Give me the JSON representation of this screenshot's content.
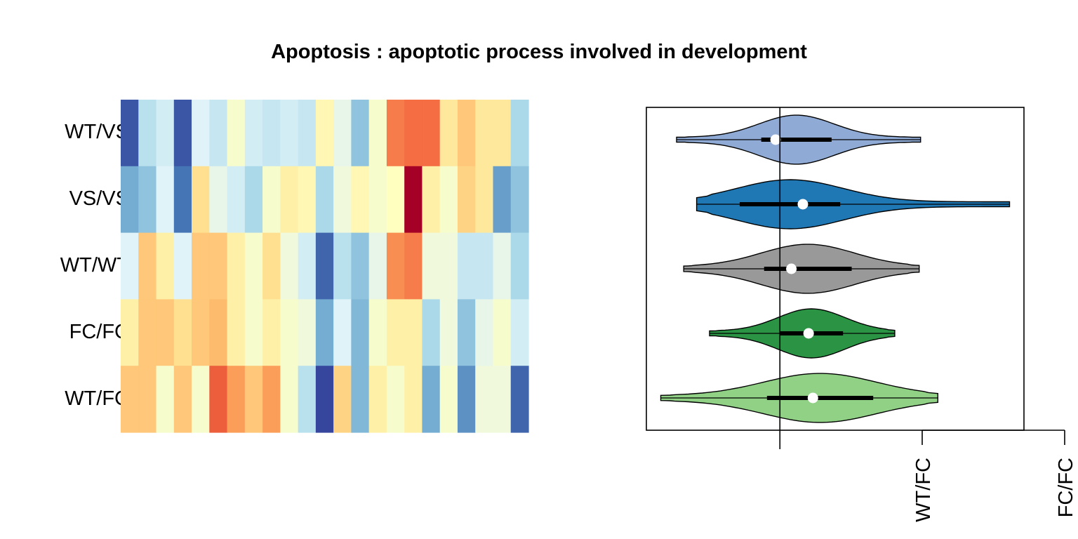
{
  "chart_data": [
    {
      "type": "heatmap",
      "title": "Apoptosis : apoptotic process involved in development",
      "rows": [
        "WT/VS",
        "VS/VS",
        "WT/WT",
        "FC/FC",
        "WT/FC"
      ],
      "n_columns": 23,
      "color_scale": [
        "#313695",
        "#4575b4",
        "#74add1",
        "#abd9e9",
        "#e0f3f8",
        "#ffffbf",
        "#fee090",
        "#fdae61",
        "#f46d43",
        "#d73027",
        "#a50026"
      ],
      "values": [
        [
          -0.9,
          -0.35,
          -0.25,
          -0.9,
          -0.2,
          -0.3,
          -0.05,
          -0.25,
          -0.3,
          -0.25,
          -0.3,
          0.05,
          -0.15,
          -0.5,
          -0.05,
          0.55,
          0.6,
          0.6,
          0.15,
          0.3,
          0.15,
          0.15,
          -0.4
        ],
        [
          -0.6,
          -0.5,
          -0.2,
          -0.8,
          0.2,
          -0.15,
          -0.25,
          -0.4,
          -0.05,
          0.1,
          0.05,
          -0.4,
          -0.1,
          0.05,
          -0.05,
          0.0,
          1.0,
          0.1,
          -0.05,
          0.25,
          0.15,
          -0.65,
          -0.5
        ],
        [
          -0.2,
          0.3,
          0.1,
          -0.2,
          0.3,
          0.3,
          0.1,
          -0.05,
          0.2,
          -0.1,
          -0.25,
          -0.85,
          -0.35,
          -0.5,
          -0.15,
          0.5,
          0.55,
          -0.1,
          -0.1,
          -0.3,
          -0.3,
          -0.15,
          -0.4
        ],
        [
          0.1,
          0.3,
          0.3,
          0.2,
          0.3,
          0.35,
          0.1,
          -0.05,
          0.1,
          -0.05,
          -0.1,
          -0.6,
          -0.2,
          -0.55,
          -0.05,
          0.1,
          0.1,
          -0.4,
          -0.1,
          -0.5,
          -0.15,
          -0.05,
          -0.25
        ],
        [
          0.3,
          0.3,
          -0.05,
          0.3,
          -0.05,
          0.65,
          0.45,
          0.3,
          0.45,
          -0.05,
          -0.35,
          -0.95,
          0.25,
          -0.55,
          0.1,
          -0.05,
          0.1,
          -0.6,
          -0.05,
          -0.7,
          -0.1,
          -0.1,
          -0.85
        ]
      ]
    },
    {
      "type": "violin",
      "orientation": "horizontal",
      "groups": [
        {
          "color": "#8faad4",
          "min": -0.72,
          "q1": -0.13,
          "median": -0.03,
          "q3": 0.36,
          "max": 0.98
        },
        {
          "color": "#1f78b4",
          "min": -0.58,
          "q1": -0.28,
          "median": 0.16,
          "q3": 0.42,
          "max": 1.6
        },
        {
          "color": "#999999",
          "min": -0.67,
          "q1": -0.11,
          "median": 0.08,
          "q3": 0.5,
          "max": 0.97
        },
        {
          "color": "#2a9444",
          "min": -0.49,
          "q1": 0.0,
          "median": 0.2,
          "q3": 0.44,
          "max": 0.8
        },
        {
          "color": "#91d186",
          "min": -0.83,
          "q1": -0.09,
          "median": 0.23,
          "q3": 0.65,
          "max": 1.1
        }
      ],
      "reference_line": 0,
      "xlim": [
        -0.93,
        1.7
      ],
      "x_tick_labels": [
        "WT/FC",
        "FC/FC"
      ]
    }
  ]
}
